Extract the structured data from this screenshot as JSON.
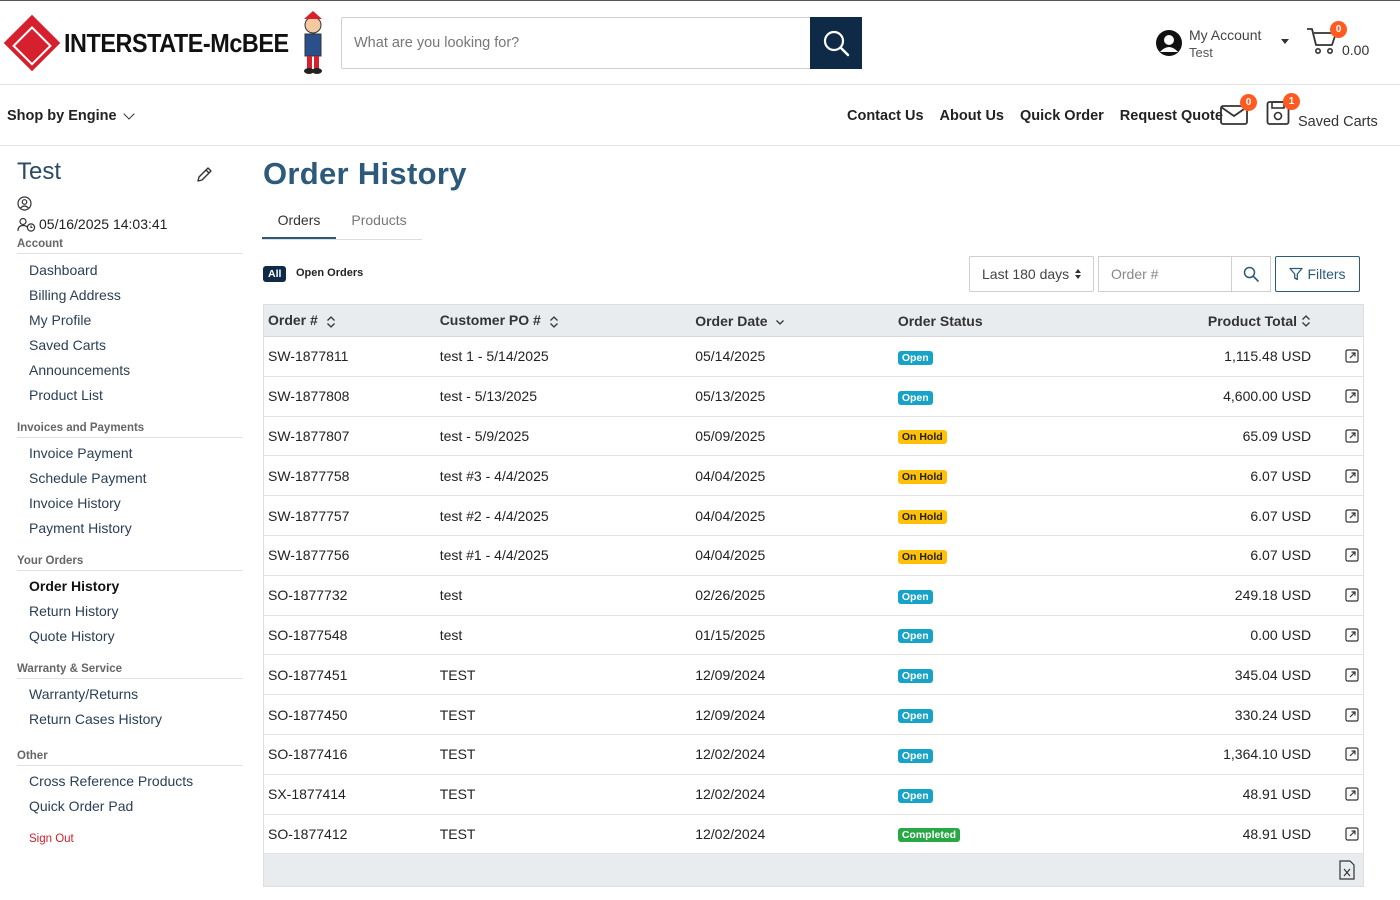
{
  "header": {
    "brand": "INTERSTATE-McBEE",
    "search_placeholder": "What are you looking for?",
    "account_title": "My Account",
    "account_user": "Test",
    "cart_count": "0",
    "cart_total": "0.00"
  },
  "nav": {
    "shop_by_engine": "Shop by Engine",
    "links": [
      "Contact Us",
      "About Us",
      "Quick Order",
      "Request Quote"
    ],
    "mail_count": "0",
    "saved_count": "1",
    "saved_carts_label": "Saved Carts"
  },
  "sidebar": {
    "name": "Test",
    "last_login": "05/16/2025 14:03:41",
    "sections": [
      {
        "title": "Account",
        "items": [
          "Dashboard",
          "Billing Address",
          "My Profile",
          "Saved Carts",
          "Announcements",
          "Product List"
        ]
      },
      {
        "title": "Invoices and Payments",
        "items": [
          "Invoice Payment",
          "Schedule Payment",
          "Invoice History",
          "Payment History"
        ]
      },
      {
        "title": "Your Orders",
        "items": [
          "Order History",
          "Return History",
          "Quote History"
        ]
      },
      {
        "title": "Warranty & Service",
        "items": [
          "Warranty/Returns",
          "Return Cases History"
        ]
      },
      {
        "title": "Other",
        "items": [
          "Cross Reference Products",
          "Quick Order Pad"
        ]
      }
    ],
    "active_item": "Order History",
    "sign_out": "Sign Out"
  },
  "main": {
    "title": "Order History",
    "tabs": [
      "Orders",
      "Products"
    ],
    "active_tab": "Orders",
    "filter_all": "All",
    "filter_open": "Open Orders",
    "range_value": "Last 180 days",
    "order_search_placeholder": "Order #",
    "filters_label": "Filters",
    "columns": [
      "Order #",
      "Customer PO #",
      "Order Date",
      "Order Status",
      "Product Total"
    ],
    "rows": [
      {
        "order": "SW-1877811",
        "po": "test 1 - 5/14/2025",
        "date": "05/14/2025",
        "status": "Open",
        "total": "1,115.48 USD"
      },
      {
        "order": "SW-1877808",
        "po": "test - 5/13/2025",
        "date": "05/13/2025",
        "status": "Open",
        "total": "4,600.00 USD"
      },
      {
        "order": "SW-1877807",
        "po": "test - 5/9/2025",
        "date": "05/09/2025",
        "status": "On Hold",
        "total": "65.09 USD"
      },
      {
        "order": "SW-1877758",
        "po": "test #3 - 4/4/2025",
        "date": "04/04/2025",
        "status": "On Hold",
        "total": "6.07 USD"
      },
      {
        "order": "SW-1877757",
        "po": "test #2 - 4/4/2025",
        "date": "04/04/2025",
        "status": "On Hold",
        "total": "6.07 USD"
      },
      {
        "order": "SW-1877756",
        "po": "test #1 - 4/4/2025",
        "date": "04/04/2025",
        "status": "On Hold",
        "total": "6.07 USD"
      },
      {
        "order": "SO-1877732",
        "po": "test",
        "date": "02/26/2025",
        "status": "Open",
        "total": "249.18 USD"
      },
      {
        "order": "SO-1877548",
        "po": "test",
        "date": "01/15/2025",
        "status": "Open",
        "total": "0.00 USD"
      },
      {
        "order": "SO-1877451",
        "po": "TEST",
        "date": "12/09/2024",
        "status": "Open",
        "total": "345.04 USD"
      },
      {
        "order": "SO-1877450",
        "po": "TEST",
        "date": "12/09/2024",
        "status": "Open",
        "total": "330.24 USD"
      },
      {
        "order": "SO-1877416",
        "po": "TEST",
        "date": "12/02/2024",
        "status": "Open",
        "total": "1,364.10 USD"
      },
      {
        "order": "SX-1877414",
        "po": "TEST",
        "date": "12/02/2024",
        "status": "Open",
        "total": "48.91 USD"
      },
      {
        "order": "SO-1877412",
        "po": "TEST",
        "date": "12/02/2024",
        "status": "Completed",
        "total": "48.91 USD"
      }
    ]
  },
  "colors": {
    "brand_red": "#d6202e",
    "navy": "#0e2a47",
    "title_blue": "#2d5a7b",
    "status_open": "#17a2c8",
    "status_hold": "#ffc107",
    "status_completed": "#28a745",
    "badge": "#ff5a1f"
  },
  "icons": [
    "search-icon",
    "user-circle-icon",
    "cart-icon",
    "mail-icon",
    "saved-cart-icon",
    "pencil-icon",
    "external-link-icon",
    "excel-export-icon",
    "filter-icon"
  ]
}
